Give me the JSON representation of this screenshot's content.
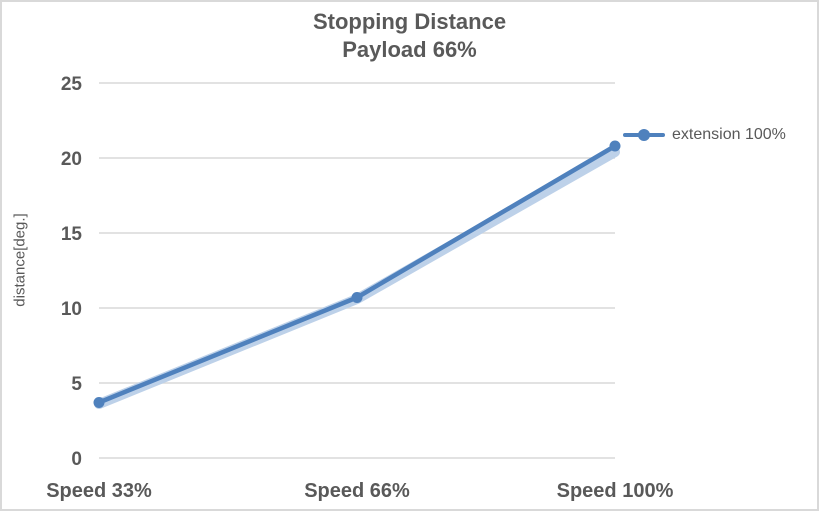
{
  "window": {
    "background": "#ffffff",
    "border_color": "#d9d9d9"
  },
  "chart_data": {
    "type": "line",
    "title": "Stopping Distance",
    "subtitle": "Payload 66%",
    "ylabel": "distance[deg.]",
    "xlabel": "",
    "categories": [
      "Speed 33%",
      "Speed 66%",
      "Speed 100%"
    ],
    "series": [
      {
        "name": "extension 100%",
        "values": [
          3.7,
          10.7,
          20.8
        ],
        "color": "#4F81BD",
        "marker": "circle",
        "line_width": 4.5,
        "marker_radius": 5.5
      }
    ],
    "shadow_series": {
      "values": [
        3.6,
        10.6,
        20.4
      ],
      "color": "#BDD1E9",
      "line_width": 10
    },
    "ylim": [
      0,
      25
    ],
    "yticks": [
      0,
      5,
      10,
      15,
      20,
      25
    ],
    "grid": "horizontal",
    "legend_position": "right-of-last-point",
    "text_color": "#595959",
    "grid_color": "#d9d9d9",
    "tick_font_size": 19,
    "category_font_size": 20
  }
}
